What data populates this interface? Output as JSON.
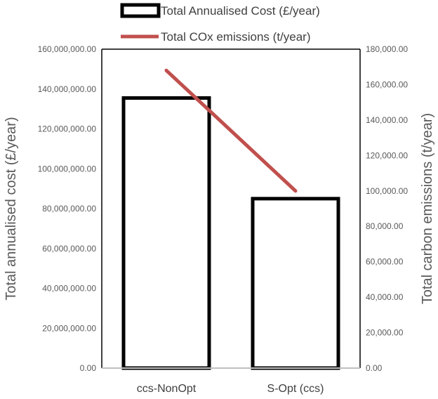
{
  "chart_data": {
    "type": "bar",
    "categories": [
      "ccs-NonOpt",
      "S-Opt (ccs)"
    ],
    "series": [
      {
        "name": "Total Annualised Cost (£/year)",
        "type": "bar",
        "axis": "left",
        "values": [
          135500000,
          85000000
        ],
        "fill": "#ffffff",
        "stroke": "#000000"
      },
      {
        "name": "Total COx emissions (t/year)",
        "type": "line",
        "axis": "right",
        "values": [
          168000,
          100000
        ],
        "color": "#c0504d"
      }
    ],
    "ylabel": "Total annualised cost (£/year)",
    "y2label": "Total carbon emissions (t/year)",
    "ylim": [
      0,
      160000000
    ],
    "y2lim": [
      0,
      180000
    ],
    "yticks": [
      "0.00",
      "20,000,000.00",
      "40,000,000.00",
      "60,000,000.00",
      "80,000,000.00",
      "100,000,000.00",
      "120,000,000.00",
      "140,000,000.00",
      "160,000,000.00"
    ],
    "y2ticks": [
      "0.00",
      "20,000.00",
      "40,000.00",
      "60,000.00",
      "80,000.00",
      "100,000.00",
      "120,000.00",
      "140,000.00",
      "160,000.00",
      "180,000.00"
    ],
    "grid": false,
    "legend_position": "top"
  }
}
